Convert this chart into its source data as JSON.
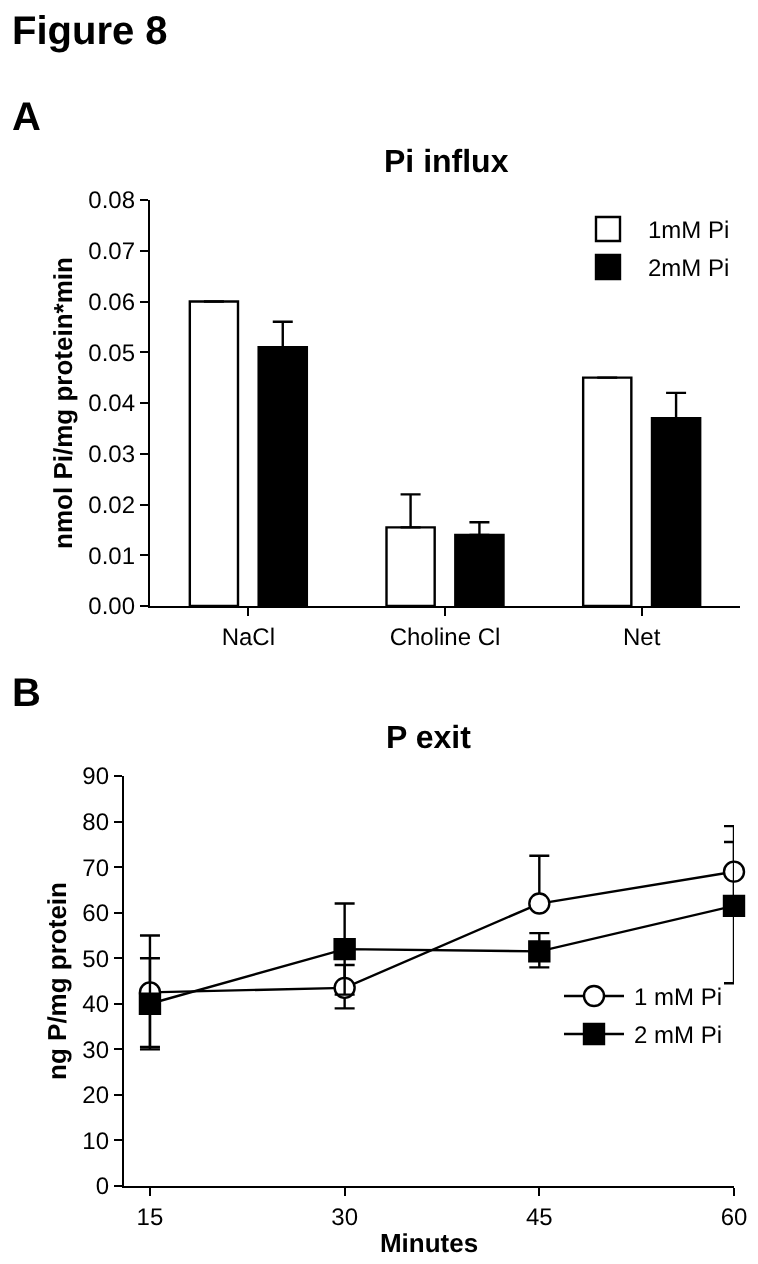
{
  "chart_data": [
    {
      "type": "bar",
      "title": "Pi influx",
      "ylabel": "nmol Pi/mg protein*min",
      "annotations": [
        "Figure 8",
        "A"
      ],
      "categories": [
        "NaCl",
        "Choline Cl",
        "Net"
      ],
      "series": [
        {
          "name": "1mM Pi",
          "color": "#ffffff",
          "values": [
            0.06,
            0.0155,
            0.045
          ],
          "errors": [
            null,
            [
              0.0155,
              0.022
            ],
            null
          ]
        },
        {
          "name": "2mM Pi",
          "color": "#000000",
          "values": [
            0.051,
            0.014,
            0.037
          ],
          "errors": [
            [
              0.051,
              0.056
            ],
            [
              0.014,
              0.0165
            ],
            [
              0.037,
              0.042
            ]
          ]
        }
      ],
      "ylim": [
        0,
        0.08
      ],
      "yticks": [
        {
          "value": 0,
          "label": "0.00"
        },
        0.01,
        0.02,
        0.03,
        0.04,
        0.05,
        0.06,
        0.07,
        0.08
      ],
      "legend": "top right",
      "grid": false
    },
    {
      "type": "line",
      "title": "P exit",
      "xlabel": "Minutes",
      "ylabel": "ng P/mg protein",
      "annotations": [
        "B"
      ],
      "x": [
        15,
        30,
        45,
        60
      ],
      "series": [
        {
          "name": "1 mM Pi",
          "color": "#ffffff",
          "marker": "circle",
          "values": [
            42.5,
            43.5,
            62,
            69
          ],
          "errors": [
            [
              30,
              55
            ],
            [
              39,
              48.5
            ],
            [
              62,
              72.5
            ],
            [
              63,
              79
            ]
          ]
        },
        {
          "name": "2 mM Pi",
          "color": "#000000",
          "marker": "square",
          "values": [
            40,
            52,
            51.5,
            61.5
          ],
          "errors": [
            [
              30.5,
              50
            ],
            [
              42,
              62
            ],
            [
              48,
              55.5
            ],
            [
              44.5,
              75.5
            ]
          ]
        }
      ],
      "xlim": [
        13,
        60
      ],
      "xticks": [
        15,
        30,
        45,
        60
      ],
      "ylim": [
        0,
        90
      ],
      "yticks": [
        0,
        10,
        20,
        30,
        40,
        50,
        60,
        70,
        80,
        90
      ],
      "legend": "bottom right",
      "grid": false
    }
  ]
}
